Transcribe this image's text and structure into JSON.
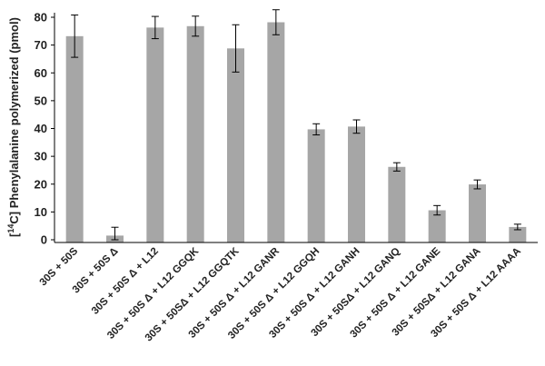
{
  "chart_data": {
    "type": "bar",
    "ylabel_sup": "14",
    "ylabel_main": "C] Phenylalanine polymerized (pmol)",
    "ylabel_open": "[",
    "ylim": [
      0,
      80
    ],
    "yticks": [
      0,
      10,
      20,
      30,
      40,
      50,
      60,
      70,
      80
    ],
    "grid": false,
    "categories": [
      "30S + 50S",
      "30S + 50S Δ",
      "30S + 50S Δ + L12",
      "30S + 50S Δ + L12 GGQK",
      "30S + 50SΔ + L12 GGQTK",
      "30S + 50S Δ + L12 GANR",
      "30S + 50S Δ + L12 GGQH",
      "30S + 50S Δ + L12 GANH",
      "30S + 50SΔ + L12 GANQ",
      "30S + 50S Δ + L12 GANE",
      "30S + 50SΔ + L12 GANA",
      "30S + 50S Δ + L12 AAAA"
    ],
    "values": [
      73.2,
      1.5,
      76.3,
      76.8,
      68.8,
      78.2,
      39.7,
      40.7,
      26.2,
      10.6,
      19.9,
      4.6
    ],
    "errors": [
      7.6,
      3.0,
      4.0,
      3.6,
      8.5,
      4.5,
      2.0,
      2.4,
      1.5,
      1.7,
      1.6,
      1.0
    ],
    "bar_color": "#a6a6a6",
    "error_color": "#000000"
  }
}
